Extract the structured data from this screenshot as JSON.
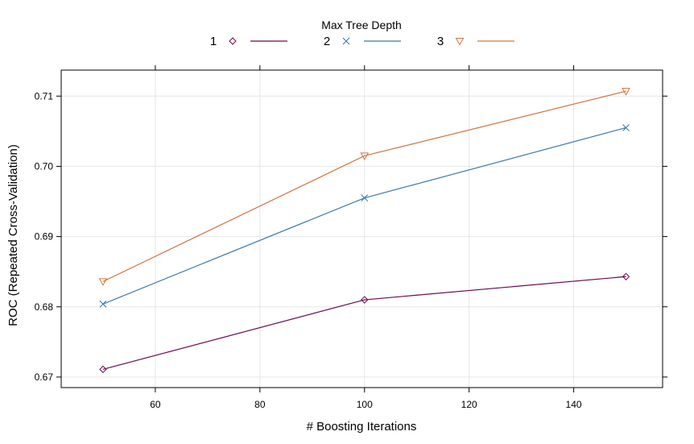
{
  "chart_data": {
    "type": "line",
    "xlabel": "# Boosting Iterations",
    "ylabel": "ROC (Repeated Cross-Validation)",
    "xlim": [
      42,
      157
    ],
    "ylim": [
      0.6685,
      0.7137
    ],
    "xticks": [
      60,
      80,
      100,
      120,
      140
    ],
    "yticks": [
      0.67,
      0.68,
      0.69,
      0.7,
      0.71
    ],
    "ytick_labels": [
      "0.67",
      "0.68",
      "0.69",
      "0.70",
      "0.71"
    ],
    "grid": true,
    "legend": {
      "title": "Max Tree Depth",
      "position": "top"
    },
    "x": [
      50,
      100,
      150
    ],
    "series": [
      {
        "name": "1",
        "values": [
          0.6711,
          0.681,
          0.6843
        ],
        "color": "#6a0a50",
        "marker": "diamond"
      },
      {
        "name": "2",
        "values": [
          0.6804,
          0.6955,
          0.7055
        ],
        "color": "#3b7bad",
        "marker": "x"
      },
      {
        "name": "3",
        "values": [
          0.6836,
          0.7015,
          0.7107
        ],
        "color": "#d4733f",
        "marker": "triangle-down"
      }
    ]
  }
}
